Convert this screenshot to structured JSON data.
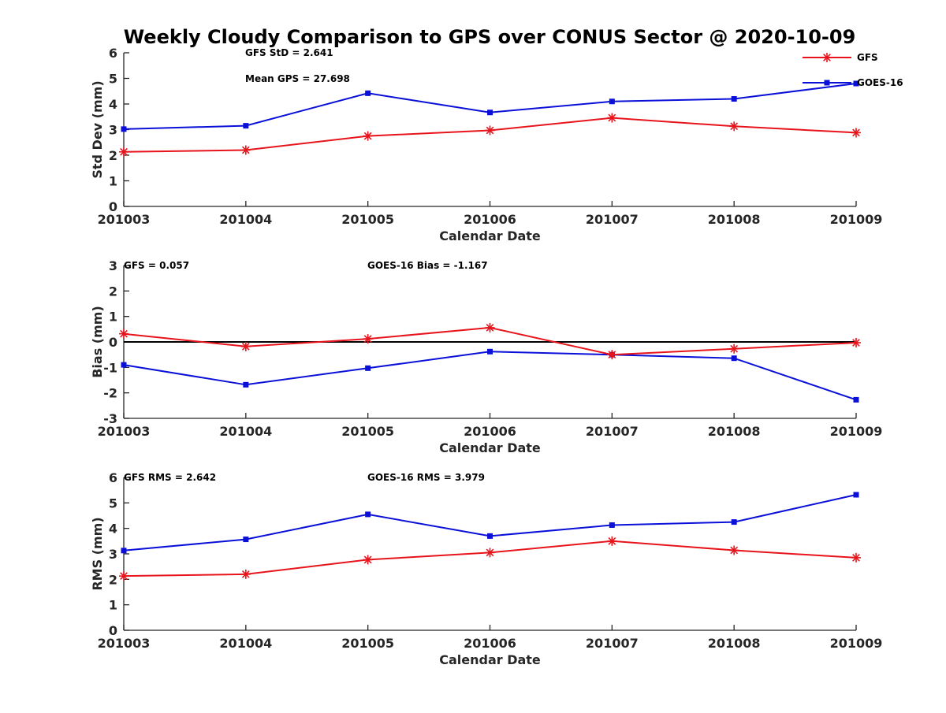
{
  "title": "Weekly Cloudy Comparison to GPS over CONUS Sector @ 2020-10-09",
  "colors": {
    "gfs": "#e8141c",
    "goes": "#0a10d8",
    "axis": "#262626"
  },
  "legend": {
    "placement": "top-right",
    "entries": [
      {
        "label": "GFS",
        "series": "gfs"
      },
      {
        "label": "GOES-16",
        "series": "goes"
      }
    ]
  },
  "chart_data": [
    {
      "id": "stddev",
      "type": "line",
      "xlabel": "Calendar Date",
      "ylabel": "Std Dev (mm)",
      "categories": [
        "201003",
        "201004",
        "201005",
        "201006",
        "201007",
        "201008",
        "201009"
      ],
      "ylim": [
        0,
        6
      ],
      "yticks": [
        "0",
        "1",
        "2",
        "3",
        "4",
        "5",
        "6"
      ],
      "series": [
        {
          "key": "gfs",
          "name": "GFS",
          "marker": "asterisk",
          "values": [
            2.13,
            2.2,
            2.75,
            2.97,
            3.46,
            3.13,
            2.88
          ]
        },
        {
          "key": "goes",
          "name": "GOES-16",
          "marker": "square",
          "values": [
            3.02,
            3.15,
            4.42,
            3.67,
            4.1,
            4.2,
            4.8
          ]
        }
      ],
      "annotations": [
        "GFS StD = 2.641",
        "Mean GPS = 27.698"
      ],
      "zero_line": false
    },
    {
      "id": "bias",
      "type": "line",
      "xlabel": "Calendar Date",
      "ylabel": "Bias (mm)",
      "categories": [
        "201003",
        "201004",
        "201005",
        "201006",
        "201007",
        "201008",
        "201009"
      ],
      "ylim": [
        -3,
        3
      ],
      "yticks": [
        "-3",
        "-2",
        "-1",
        "0",
        "1",
        "2",
        "3"
      ],
      "series": [
        {
          "key": "gfs",
          "name": "GFS",
          "marker": "asterisk",
          "values": [
            0.32,
            -0.18,
            0.12,
            0.56,
            -0.5,
            -0.27,
            -0.03
          ]
        },
        {
          "key": "goes",
          "name": "GOES-16",
          "marker": "square",
          "values": [
            -0.9,
            -1.68,
            -1.03,
            -0.38,
            -0.5,
            -0.64,
            -2.27
          ]
        }
      ],
      "annotations": [
        "GFS = 0.057",
        "GOES-16 Bias  = -1.167"
      ],
      "zero_line": true
    },
    {
      "id": "rms",
      "type": "line",
      "xlabel": "Calendar Date",
      "ylabel": "RMS (mm)",
      "categories": [
        "201003",
        "201004",
        "201005",
        "201006",
        "201007",
        "201008",
        "201009"
      ],
      "ylim": [
        0,
        6
      ],
      "yticks": [
        "0",
        "1",
        "2",
        "3",
        "4",
        "5",
        "6"
      ],
      "series": [
        {
          "key": "gfs",
          "name": "GFS",
          "marker": "asterisk",
          "values": [
            2.13,
            2.2,
            2.77,
            3.05,
            3.5,
            3.14,
            2.85
          ]
        },
        {
          "key": "goes",
          "name": "GOES-16",
          "marker": "square",
          "values": [
            3.13,
            3.57,
            4.55,
            3.7,
            4.13,
            4.25,
            5.32
          ]
        }
      ],
      "annotations": [
        "GFS RMS = 2.642",
        "GOES-16 RMS = 3.979"
      ],
      "zero_line": false
    }
  ]
}
